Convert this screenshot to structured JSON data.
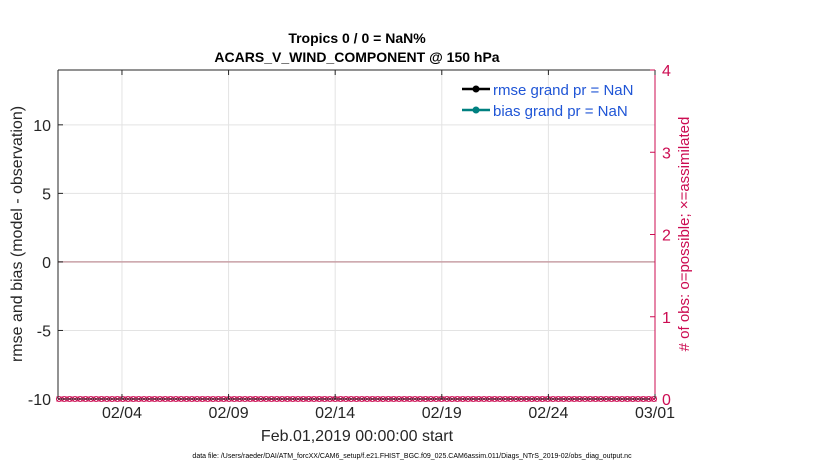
{
  "chart_data": {
    "type": "line",
    "title": "Tropics 0 / 0 = NaN%",
    "subtitle": "ACARS_V_WIND_COMPONENT @ 150 hPa",
    "xlabel": "Feb.01,2019 00:00:00 start",
    "ylabel": "rmse and bias (model - observation)",
    "ylabel_right": "# of obs: o=possible; ×=assimilated",
    "x_ticks": [
      "02/04",
      "02/09",
      "02/14",
      "02/19",
      "02/24",
      "03/01"
    ],
    "x_tick_days": [
      3,
      8,
      13,
      18,
      23,
      28
    ],
    "xlim": [
      0,
      28
    ],
    "y_ticks": [
      "-10",
      "-5",
      "0",
      "5",
      "10"
    ],
    "y_tick_values": [
      -10,
      -5,
      0,
      5,
      10
    ],
    "ylim": [
      -10,
      14
    ],
    "y2_ticks": [
      "0",
      "1",
      "2",
      "3",
      "4"
    ],
    "y2_tick_values": [
      0,
      1,
      2,
      3,
      4
    ],
    "y2lim": [
      0,
      4
    ],
    "reference_line_y": 0,
    "grid": true,
    "legend_position": "top-right",
    "series": [
      {
        "name": "rmse grand pr = NaN",
        "color": "#000000",
        "values": []
      },
      {
        "name": "bias grand pr = NaN",
        "color": "#008080",
        "values": []
      }
    ],
    "obs_counts": {
      "possible": {
        "color": "#cc0c52",
        "value": 0,
        "count": 113
      },
      "assimilated": {
        "color": "#cc0c52",
        "value": 0,
        "count": 113
      }
    },
    "footnote": "data file: /Users/raeder/DAI/ATM_forcXX/CAM6_setup/f.e21.FHIST_BGC.f09_025.CAM6assim.011/Diags_NTrS_2019-02/obs_diag_output.nc"
  }
}
